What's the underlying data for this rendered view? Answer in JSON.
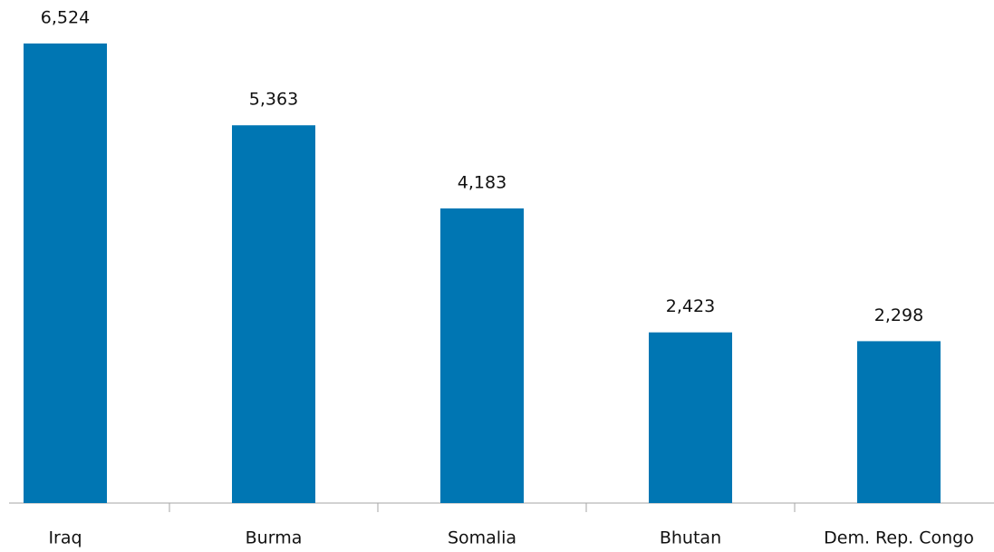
{
  "chart_data": {
    "type": "bar",
    "categories": [
      "Iraq",
      "Burma",
      "Somalia",
      "Bhutan",
      "Dem. Rep. Congo"
    ],
    "values": [
      6524,
      5363,
      4183,
      2423,
      2298
    ],
    "value_labels": [
      "6,524",
      "5,363",
      "4,183",
      "2,423",
      "2,298"
    ],
    "color": "#0076b3"
  }
}
